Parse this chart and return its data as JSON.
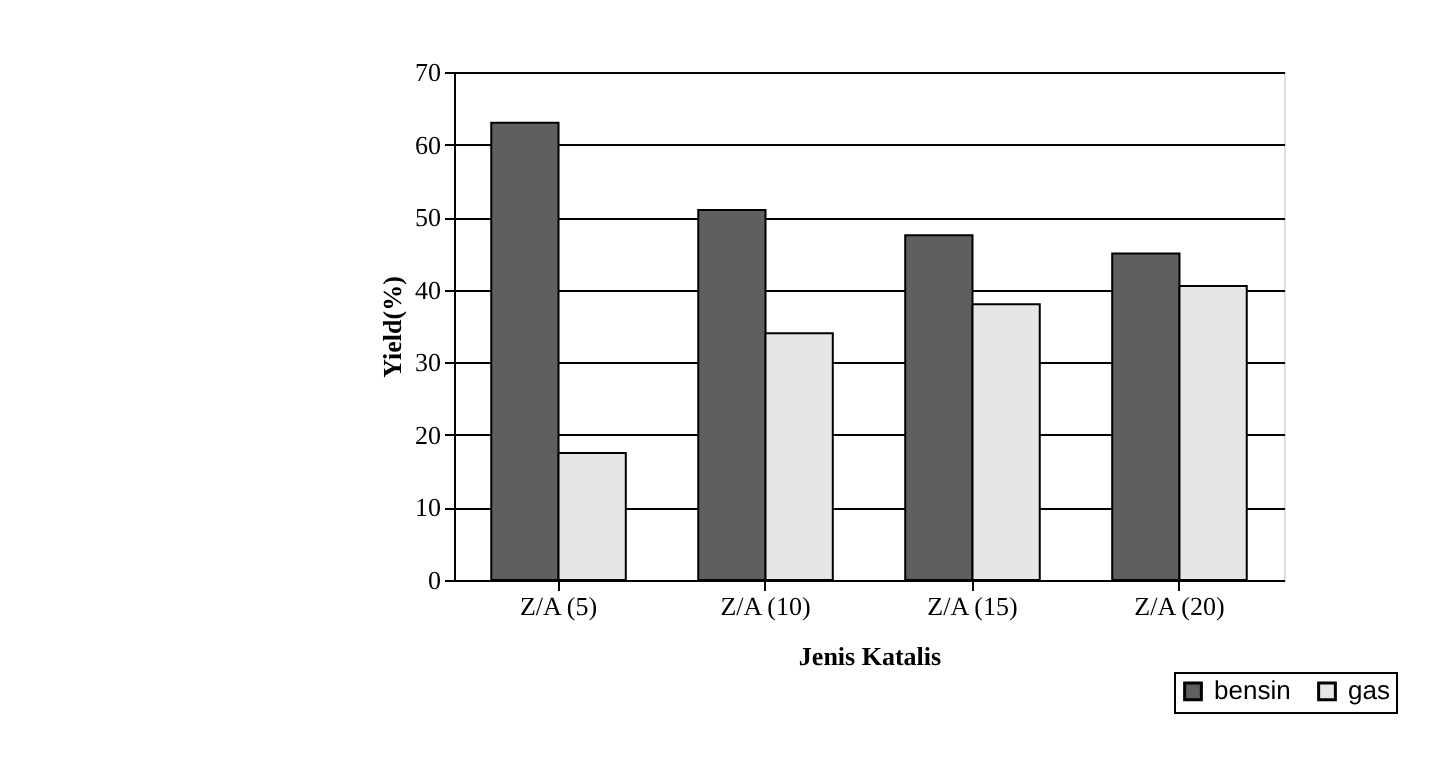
{
  "chart_data": {
    "type": "bar",
    "xlabel": "Jenis Katalis",
    "ylabel": "Yield(%)",
    "categories": [
      "Z/A (5)",
      "Z/A (10)",
      "Z/A (15)",
      "Z/A (20)"
    ],
    "series": [
      {
        "name": "bensin",
        "color": "#5f5f5f",
        "values": [
          63,
          51,
          47.5,
          45
        ]
      },
      {
        "name": "gas",
        "color": "#e6e6e6",
        "values": [
          17.5,
          34,
          38,
          40.5
        ]
      }
    ],
    "ylim": [
      0,
      70
    ],
    "yticks": [
      0,
      10,
      20,
      30,
      40,
      50,
      60,
      70
    ],
    "grid": "y",
    "legend": "bottom right"
  }
}
